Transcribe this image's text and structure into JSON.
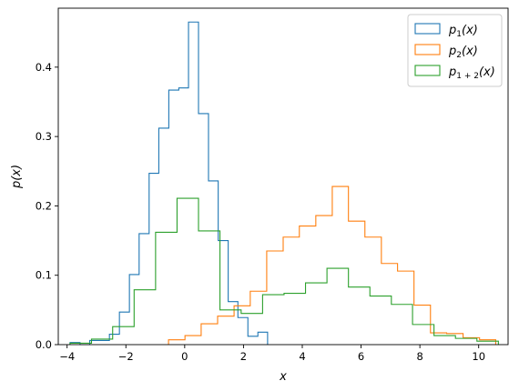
{
  "chart_data": {
    "type": "histogram-step",
    "xlabel": "x",
    "ylabel": "p(x)",
    "xlim": [
      -4.3,
      11.0
    ],
    "ylim": [
      0,
      0.485
    ],
    "xticks": [
      -4,
      -2,
      0,
      2,
      4,
      6,
      8,
      10
    ],
    "yticks": [
      0.0,
      0.1,
      0.2,
      0.3,
      0.4
    ],
    "xtick_labels": [
      "−4",
      "−2",
      "0",
      "2",
      "4",
      "6",
      "8",
      "10"
    ],
    "ytick_labels": [
      "0.0",
      "0.1",
      "0.2",
      "0.3",
      "0.4"
    ],
    "grid": false,
    "legend_position": "top-right",
    "series": [
      {
        "name": "p_1(x)",
        "label_main": "p",
        "label_sub": "1",
        "label_tail": "(x)",
        "color": "#1f77b4",
        "edges": [
          -3.9,
          -3.56,
          -3.23,
          -2.89,
          -2.56,
          -2.22,
          -1.88,
          -1.55,
          -1.21,
          -0.88,
          -0.54,
          -0.2,
          0.13,
          0.47,
          0.81,
          1.14,
          1.48,
          1.81,
          2.15,
          2.49,
          2.82
        ],
        "values": [
          0.003,
          0.0,
          0.006,
          0.006,
          0.015,
          0.047,
          0.101,
          0.16,
          0.247,
          0.312,
          0.367,
          0.37,
          0.465,
          0.333,
          0.236,
          0.15,
          0.062,
          0.039,
          0.012,
          0.018
        ]
      },
      {
        "name": "p_2(x)",
        "label_main": "p",
        "label_sub": "2",
        "label_tail": "(x)",
        "color": "#ff7f0e",
        "edges": [
          -0.55,
          0.01,
          0.56,
          1.12,
          1.68,
          2.23,
          2.79,
          3.35,
          3.9,
          4.46,
          5.02,
          5.57,
          6.13,
          6.69,
          7.24,
          7.8,
          8.36,
          8.91,
          9.47,
          10.03,
          10.58
        ],
        "values": [
          0.007,
          0.013,
          0.03,
          0.041,
          0.056,
          0.077,
          0.135,
          0.155,
          0.171,
          0.186,
          0.228,
          0.178,
          0.155,
          0.117,
          0.106,
          0.057,
          0.017,
          0.016,
          0.01,
          0.007
        ]
      },
      {
        "name": "p_{1+2}(x)",
        "label_main": "p",
        "label_sub": "1 + 2",
        "label_tail": "(x)",
        "color": "#2ca02c",
        "edges": [
          -3.9,
          -3.17,
          -2.45,
          -1.72,
          -0.99,
          -0.26,
          0.47,
          1.2,
          1.92,
          2.65,
          3.38,
          4.11,
          4.84,
          5.57,
          6.3,
          7.03,
          7.75,
          8.48,
          9.21,
          9.94,
          10.67
        ],
        "values": [
          0.002,
          0.008,
          0.026,
          0.079,
          0.162,
          0.211,
          0.164,
          0.05,
          0.045,
          0.072,
          0.074,
          0.089,
          0.11,
          0.083,
          0.07,
          0.058,
          0.029,
          0.013,
          0.009,
          0.005
        ]
      }
    ]
  }
}
